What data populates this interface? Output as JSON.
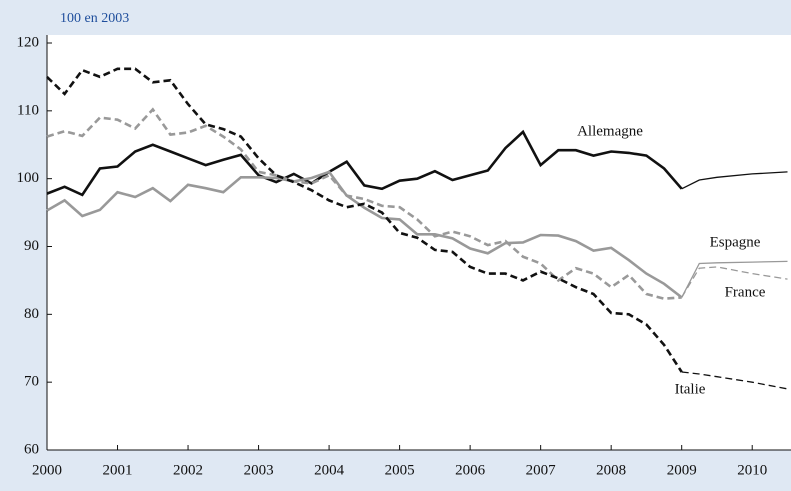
{
  "chart_data": {
    "type": "line",
    "subtitle": "100 en 2003",
    "x": [
      2000,
      2000.25,
      2000.5,
      2000.75,
      2001,
      2001.25,
      2001.5,
      2001.75,
      2002,
      2002.25,
      2002.5,
      2002.75,
      2003,
      2003.25,
      2003.5,
      2003.75,
      2004,
      2004.25,
      2004.5,
      2004.75,
      2005,
      2005.25,
      2005.5,
      2005.75,
      2006,
      2006.25,
      2006.5,
      2006.75,
      2007,
      2007.25,
      2007.5,
      2007.75,
      2008,
      2008.25,
      2008.5,
      2008.75,
      2009
    ],
    "forecast_x": [
      2009,
      2009.25,
      2009.5,
      2010,
      2010.5
    ],
    "series": [
      {
        "name": "Allemagne",
        "color": "#111111",
        "dashed": false,
        "values": [
          97.8,
          98.8,
          97.6,
          101.5,
          101.8,
          104,
          105,
          104,
          103,
          102,
          102.8,
          103.5,
          100.5,
          99.5,
          100.7,
          99.3,
          101,
          102.5,
          99,
          98.5,
          99.7,
          100,
          101.1,
          99.8,
          100.5,
          101.2,
          104.5,
          106.9,
          102,
          104.2,
          104.2,
          103.4,
          104,
          103.8,
          103.4,
          101.5,
          98.5
        ],
        "forecast_values": [
          98.5,
          99.8,
          100.2,
          100.7,
          101
        ]
      },
      {
        "name": "Espagne",
        "color": "#999999",
        "dashed": false,
        "values": [
          95.3,
          96.8,
          94.5,
          95.4,
          98,
          97.3,
          98.6,
          96.7,
          99.1,
          98.6,
          98,
          100.2,
          100.2,
          100.1,
          99.6,
          100.1,
          101,
          97.5,
          95.7,
          94.2,
          94,
          91.8,
          91.8,
          91.2,
          89.7,
          89,
          90.5,
          90.6,
          91.7,
          91.6,
          90.8,
          89.4,
          89.8,
          88,
          86,
          84.5,
          82.5
        ],
        "forecast_values": [
          82.5,
          87.5,
          87.6,
          87.7,
          87.8
        ]
      },
      {
        "name": "France",
        "color": "#999999",
        "dashed": true,
        "values": [
          106.2,
          107,
          106.3,
          109,
          108.7,
          107.4,
          110.2,
          106.5,
          106.8,
          107.8,
          106.2,
          104.3,
          101,
          100.5,
          99.6,
          99.3,
          100.5,
          97.5,
          97,
          96,
          95.8,
          94,
          91.5,
          92.2,
          91.5,
          90.2,
          90.8,
          88.5,
          87.5,
          85,
          86.8,
          86,
          84,
          85.8,
          83,
          82.3,
          82.5
        ],
        "forecast_values": [
          82.5,
          86.8,
          87,
          86,
          85.2
        ]
      },
      {
        "name": "Italie",
        "color": "#111111",
        "dashed": true,
        "values": [
          115,
          112.5,
          116,
          115,
          116.2,
          116.2,
          114.2,
          114.5,
          111,
          108,
          107.3,
          106.2,
          103,
          100.5,
          99.5,
          98.3,
          96.8,
          95.8,
          96.3,
          95,
          92,
          91.3,
          89.5,
          89.2,
          87,
          86,
          86,
          85,
          86.3,
          85.3,
          84,
          83,
          80.2,
          80,
          78.5,
          75.5,
          71.5
        ],
        "forecast_values": [
          71.5,
          71.2,
          70.8,
          70,
          69
        ]
      }
    ],
    "xlim": [
      2000,
      2010.55
    ],
    "xticks": [
      2000,
      2001,
      2002,
      2003,
      2004,
      2005,
      2006,
      2007,
      2008,
      2009,
      2010
    ],
    "ylim": [
      60,
      120
    ],
    "yticks": [
      60,
      70,
      80,
      90,
      100,
      110,
      120
    ]
  }
}
